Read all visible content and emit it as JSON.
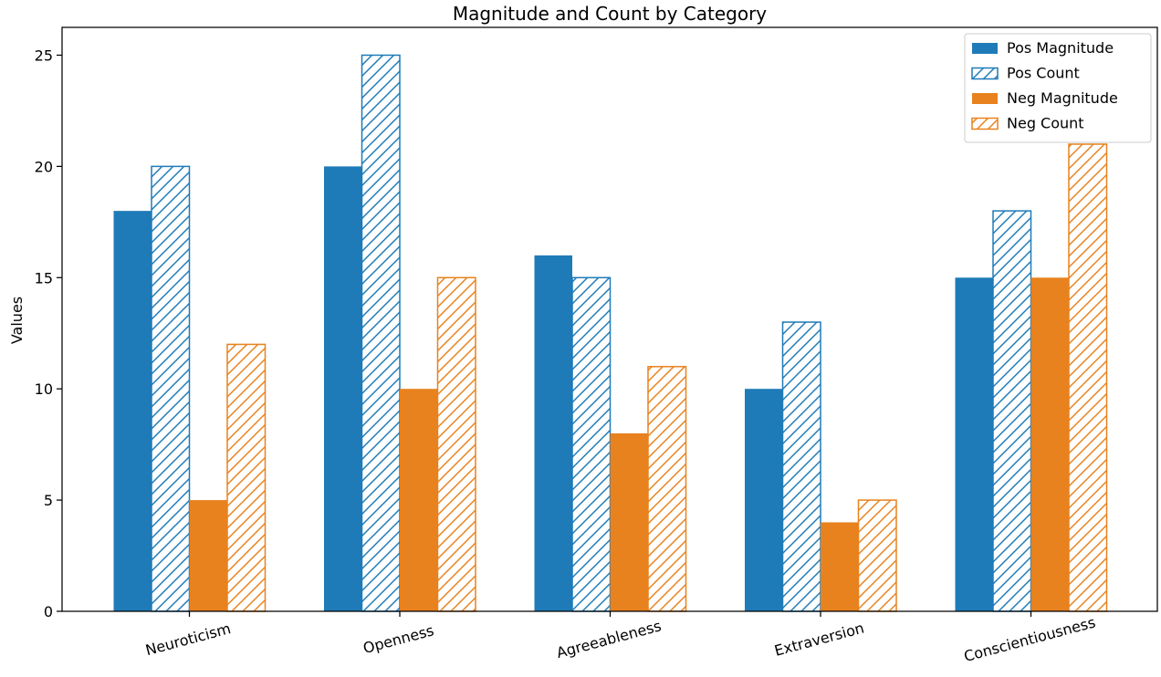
{
  "chart_data": {
    "type": "bar",
    "title": "Magnitude and Count by Category",
    "xlabel": "",
    "ylabel": "Values",
    "categories": [
      "Neuroticism",
      "Openness",
      "Agreeableness",
      "Extraversion",
      "Conscientiousness"
    ],
    "series": [
      {
        "name": "Pos Magnitude",
        "values": [
          18,
          20,
          16,
          10,
          15
        ],
        "color": "#1f7bb8",
        "hatched": false
      },
      {
        "name": "Pos Count",
        "values": [
          20,
          25,
          15,
          13,
          18
        ],
        "color": "#1f7bb8",
        "hatched": true
      },
      {
        "name": "Neg Magnitude",
        "values": [
          5,
          10,
          8,
          4,
          15
        ],
        "color": "#e8821e",
        "hatched": false
      },
      {
        "name": "Neg Count",
        "values": [
          12,
          15,
          11,
          5,
          21
        ],
        "color": "#e8821e",
        "hatched": true
      }
    ],
    "ylim": [
      0,
      26.25
    ],
    "yticks": [
      "0",
      "5",
      "10",
      "15",
      "20",
      "25"
    ],
    "grid": false,
    "legend_position": "top-right"
  }
}
